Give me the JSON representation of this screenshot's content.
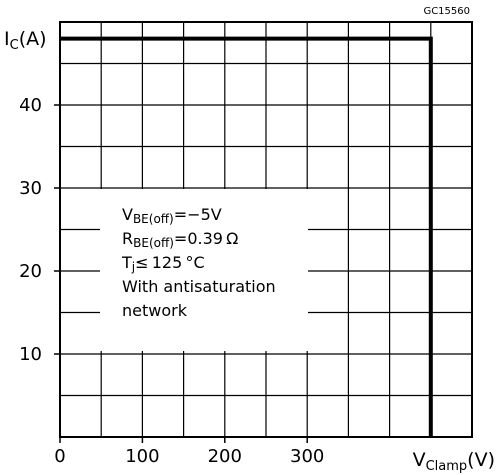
{
  "chart_data": {
    "type": "line",
    "figure_code": "GC15560",
    "ylabel": {
      "main": "I",
      "sub": "C",
      "unit": "(A)"
    },
    "xlabel": {
      "main": "V",
      "sub": "Clamp",
      "unit": "(V)"
    },
    "xlim": [
      0,
      500
    ],
    "ylim": [
      0,
      50
    ],
    "x_ticks": [
      {
        "value": 0,
        "label": "0"
      },
      {
        "value": 100,
        "label": "100"
      },
      {
        "value": 200,
        "label": "200"
      },
      {
        "value": 300,
        "label": "300"
      }
    ],
    "y_ticks": [
      {
        "value": 10,
        "label": "10"
      },
      {
        "value": 20,
        "label": "20"
      },
      {
        "value": 30,
        "label": "30"
      },
      {
        "value": 40,
        "label": "40"
      }
    ],
    "grid": true,
    "grid_x_step": 50,
    "grid_y_step": 5,
    "series": [
      {
        "x": [
          0,
          450,
          450
        ],
        "y": [
          48,
          48,
          0
        ]
      }
    ],
    "annotation": {
      "lines": [
        {
          "main": "V",
          "sub": "BE(off)",
          "rest": "=−5V"
        },
        {
          "main": "R",
          "sub": "BE(off)",
          "rest": "=0.39 Ω"
        },
        {
          "main": "T",
          "sub": "j",
          "rest": "≤ 125 °C"
        },
        {
          "main": "With  antisaturation",
          "sub": "",
          "rest": ""
        },
        {
          "main": "network",
          "sub": "",
          "rest": ""
        }
      ]
    }
  }
}
